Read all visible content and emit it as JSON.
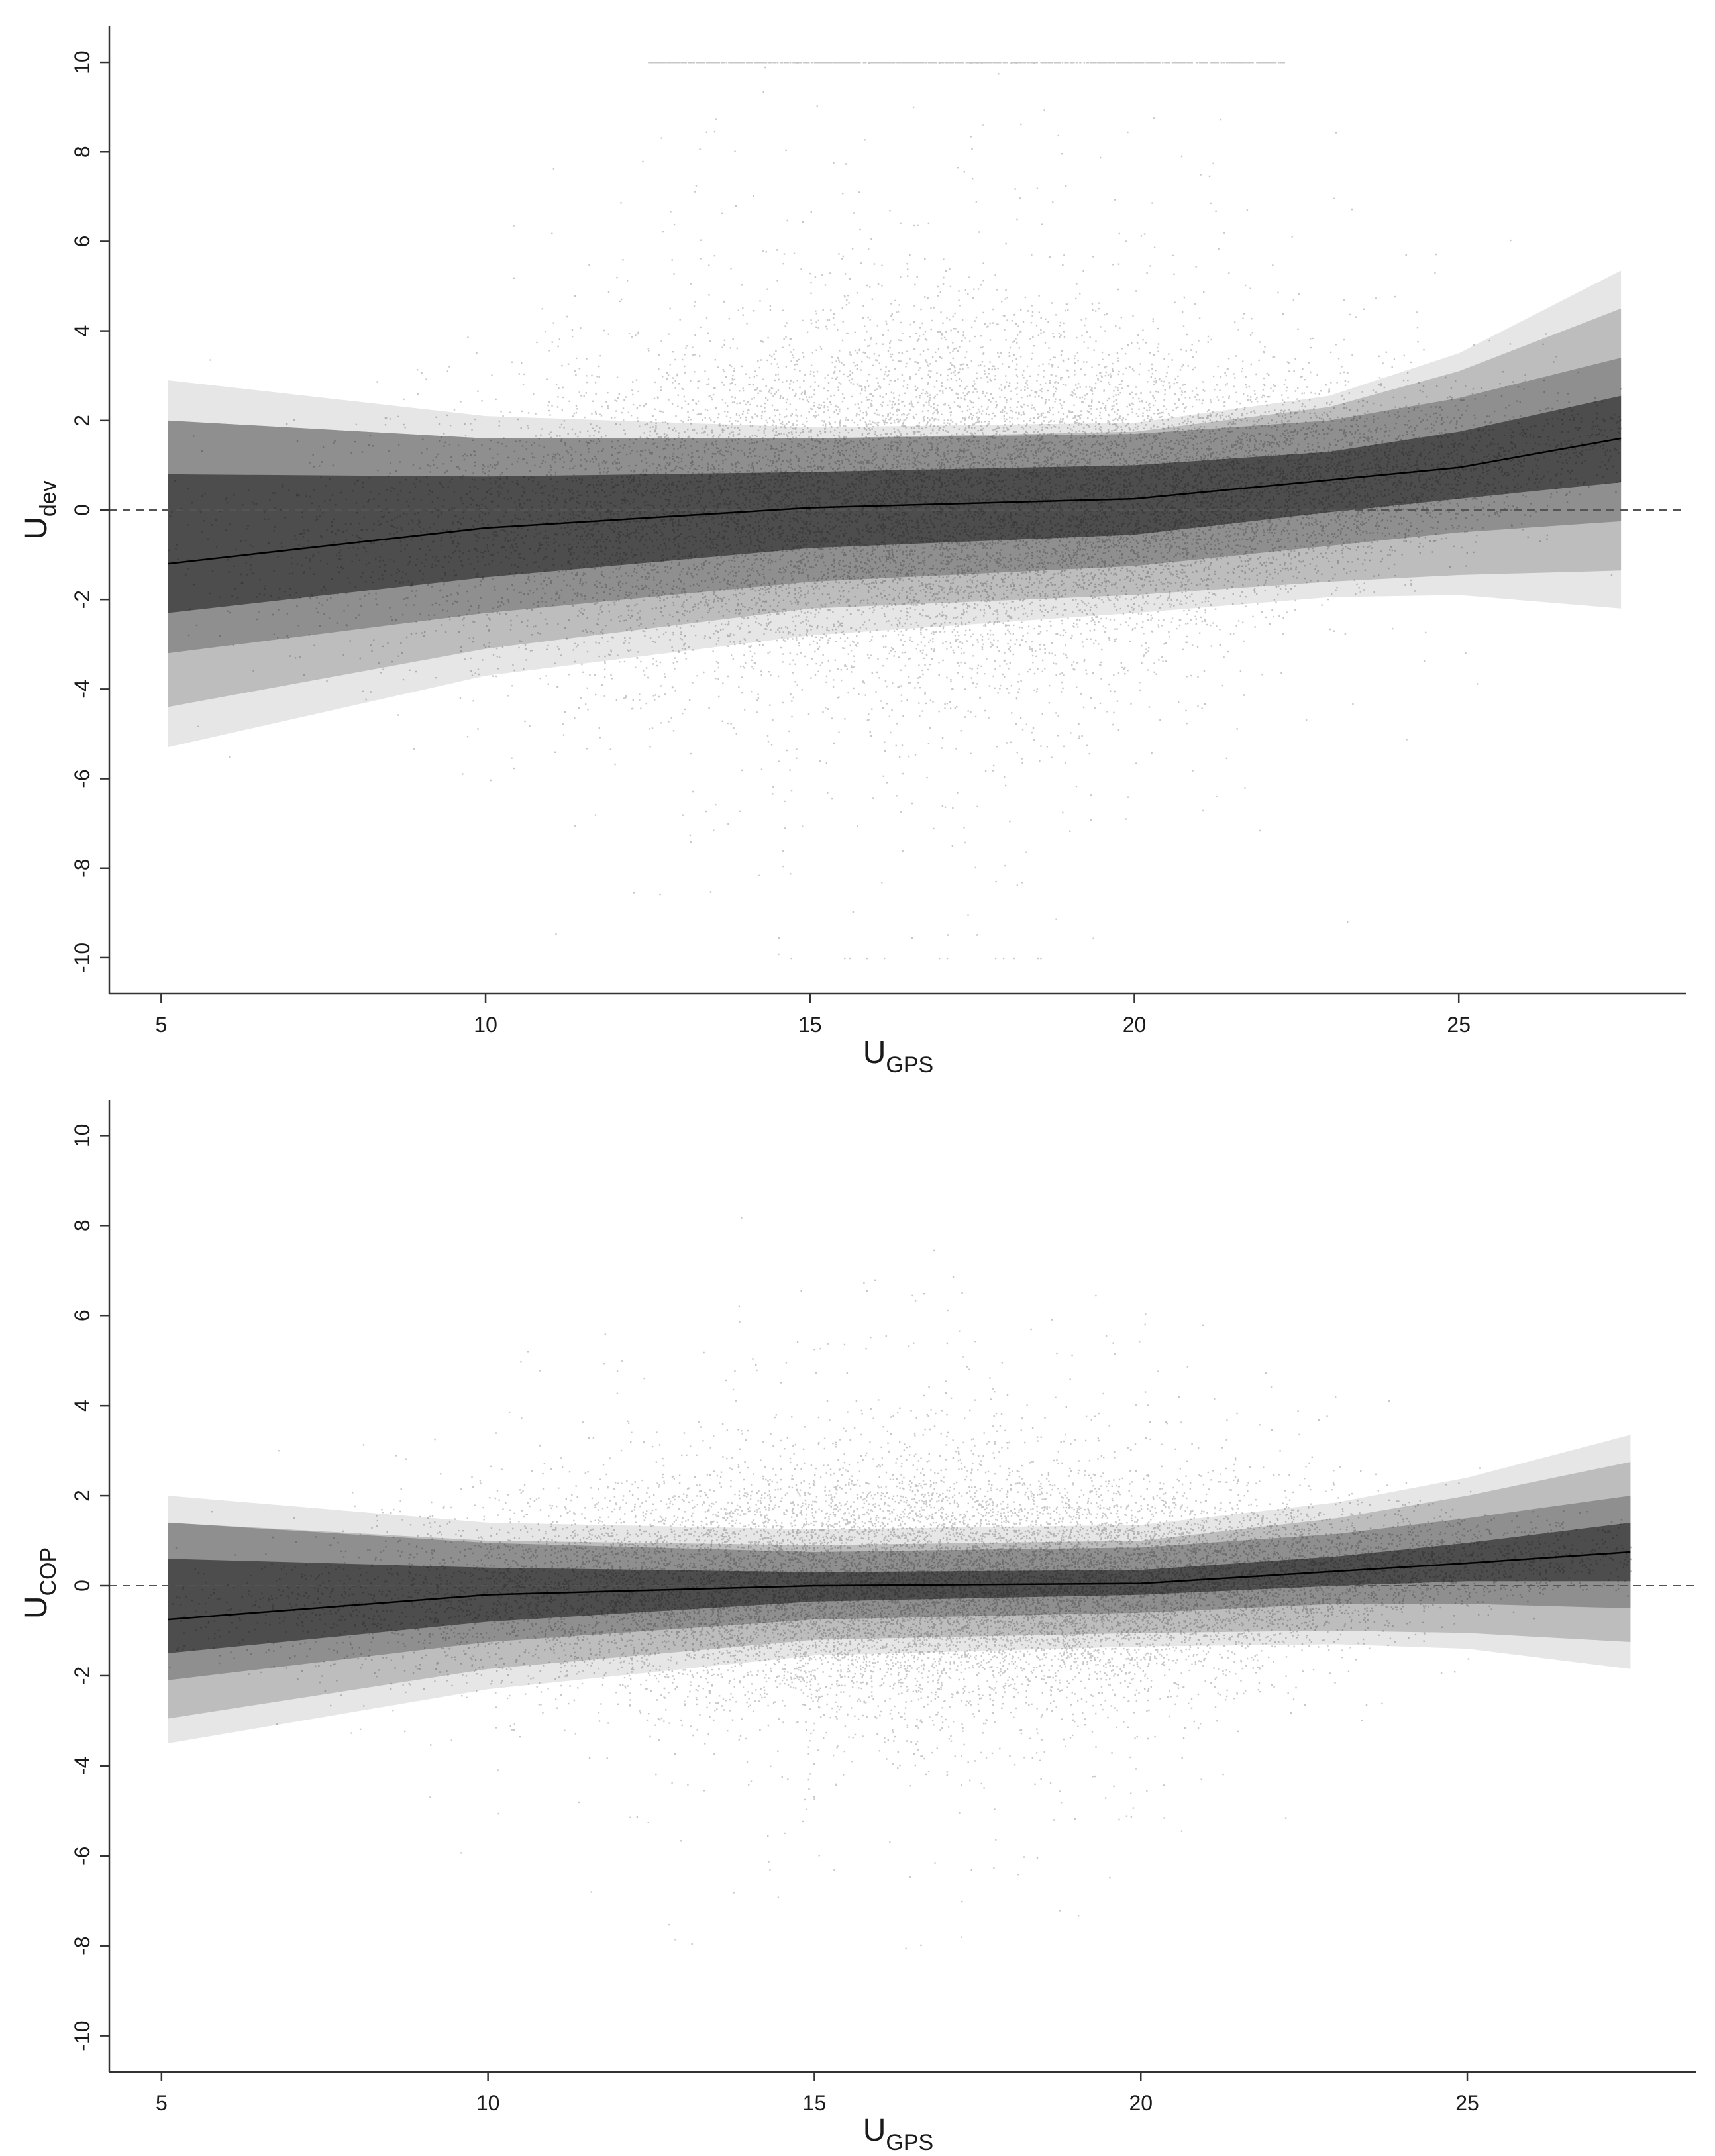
{
  "chart_data": [
    {
      "type": "scatter",
      "title": "",
      "xlabel": "U",
      "xlabel_sub": "GPS",
      "ylabel": "U",
      "ylabel_sub": "dev",
      "xlim": [
        4.2,
        28.5
      ],
      "ylim": [
        -10.8,
        10.8
      ],
      "x_ticks": [
        5,
        10,
        15,
        20,
        25
      ],
      "y_ticks": [
        -10,
        -8,
        -6,
        -4,
        -2,
        0,
        2,
        4,
        6,
        8,
        10
      ],
      "reference_line": {
        "y": 0,
        "style": "dashed"
      },
      "grid": false,
      "legend": "none",
      "scatter_density": {
        "x_range": [
          5.1,
          27.5
        ],
        "center_peak_x": 17.5,
        "spread_at": [
          [
            5,
            0.9
          ],
          [
            10,
            1.5
          ],
          [
            15,
            1.9
          ],
          [
            17.5,
            2.0
          ],
          [
            20,
            1.6
          ],
          [
            25,
            0.8
          ],
          [
            27.5,
            0.5
          ]
        ],
        "saturation_row_y": 10,
        "saturation_row_x": [
          12.5,
          22.3
        ]
      },
      "series": [
        {
          "kind": "fit_line",
          "x": [
            5.1,
            10,
            15,
            20,
            25,
            27.5
          ],
          "y": [
            -1.2,
            -0.4,
            0.05,
            0.25,
            0.95,
            1.6
          ]
        },
        {
          "kind": "band",
          "level": 1,
          "x": [
            5.1,
            10,
            15,
            20,
            23,
            25,
            27.5
          ],
          "upper": [
            0.8,
            0.75,
            0.85,
            1.0,
            1.3,
            1.75,
            2.55
          ],
          "lower": [
            -2.3,
            -1.5,
            -0.85,
            -0.55,
            -0.05,
            0.25,
            0.62
          ]
        },
        {
          "kind": "band",
          "level": 2,
          "x": [
            5.1,
            10,
            15,
            20,
            23,
            25,
            27.5
          ],
          "upper": [
            2.0,
            1.6,
            1.6,
            1.7,
            2.0,
            2.5,
            3.4
          ],
          "lower": [
            -3.2,
            -2.3,
            -1.6,
            -1.25,
            -0.8,
            -0.5,
            -0.25
          ]
        },
        {
          "kind": "band",
          "level": 3,
          "x": [
            5.1,
            10,
            15,
            20,
            23,
            25,
            27.5
          ],
          "upper": [
            2.0,
            1.6,
            1.6,
            1.75,
            2.3,
            3.1,
            4.5
          ],
          "lower": [
            -4.4,
            -3.1,
            -2.2,
            -1.9,
            -1.6,
            -1.45,
            -1.35
          ]
        },
        {
          "kind": "band",
          "level": 4,
          "x": [
            5.1,
            10,
            15,
            20,
            23,
            25,
            27.5
          ],
          "upper": [
            2.9,
            2.1,
            1.85,
            1.95,
            2.55,
            3.5,
            5.35
          ],
          "lower": [
            -5.3,
            -3.7,
            -2.8,
            -2.3,
            -1.95,
            -1.9,
            -2.2
          ]
        }
      ]
    },
    {
      "type": "scatter",
      "title": "",
      "xlabel": "U",
      "xlabel_sub": "GPS",
      "ylabel": "U",
      "ylabel_sub": "COP",
      "xlim": [
        4.2,
        28.5
      ],
      "ylim": [
        -10.8,
        10.8
      ],
      "x_ticks": [
        5,
        10,
        15,
        20,
        25
      ],
      "y_ticks": [
        -10,
        -8,
        -6,
        -4,
        -2,
        0,
        2,
        4,
        6,
        8,
        10
      ],
      "reference_line": {
        "y": 0,
        "style": "dashed"
      },
      "grid": false,
      "legend": "none",
      "scatter_density": {
        "x_range": [
          5.1,
          27.5
        ],
        "center_peak_x": 17,
        "spread_at": [
          [
            5,
            0.6
          ],
          [
            10,
            1.0
          ],
          [
            15,
            1.3
          ],
          [
            17,
            1.35
          ],
          [
            20,
            1.1
          ],
          [
            25,
            0.5
          ],
          [
            27.5,
            0.35
          ]
        ],
        "saturation_row_y": null,
        "saturation_row_x": null
      },
      "series": [
        {
          "kind": "fit_line",
          "x": [
            5.1,
            10,
            15,
            20,
            25,
            27.5
          ],
          "y": [
            -0.75,
            -0.2,
            0.0,
            0.05,
            0.5,
            0.75
          ]
        },
        {
          "kind": "band",
          "level": 1,
          "x": [
            5.1,
            10,
            15,
            20,
            23,
            25,
            27.5
          ],
          "upper": [
            0.6,
            0.4,
            0.3,
            0.35,
            0.65,
            0.95,
            1.4
          ],
          "lower": [
            -1.5,
            -0.8,
            -0.35,
            -0.2,
            0.0,
            0.1,
            0.1
          ]
        },
        {
          "kind": "band",
          "level": 2,
          "x": [
            5.1,
            10,
            15,
            20,
            23,
            25,
            27.5
          ],
          "upper": [
            1.4,
            0.95,
            0.75,
            0.85,
            1.15,
            1.5,
            2.0
          ],
          "lower": [
            -2.1,
            -1.25,
            -0.75,
            -0.6,
            -0.4,
            -0.4,
            -0.5
          ]
        },
        {
          "kind": "band",
          "level": 3,
          "x": [
            5.1,
            10,
            15,
            20,
            23,
            25,
            27.5
          ],
          "upper": [
            1.4,
            1.0,
            0.9,
            1.0,
            1.5,
            2.0,
            2.75
          ],
          "lower": [
            -2.95,
            -1.85,
            -1.2,
            -1.05,
            -1.0,
            -1.05,
            -1.25
          ]
        },
        {
          "kind": "band",
          "level": 4,
          "x": [
            5.1,
            10,
            15,
            20,
            23,
            25,
            27.5
          ],
          "upper": [
            2.0,
            1.4,
            1.25,
            1.35,
            1.85,
            2.4,
            3.35
          ],
          "lower": [
            -3.5,
            -2.3,
            -1.55,
            -1.35,
            -1.3,
            -1.4,
            -1.85
          ]
        }
      ]
    }
  ],
  "colors": {
    "band_1": "#4d4d4d",
    "band_2": "#8f8f8f",
    "band_3": "#bdbdbd",
    "band_4": "#e6e6e6",
    "points": "#000000",
    "fit_line": "#000000",
    "axis": "#333333",
    "reference_line": "#555555"
  }
}
